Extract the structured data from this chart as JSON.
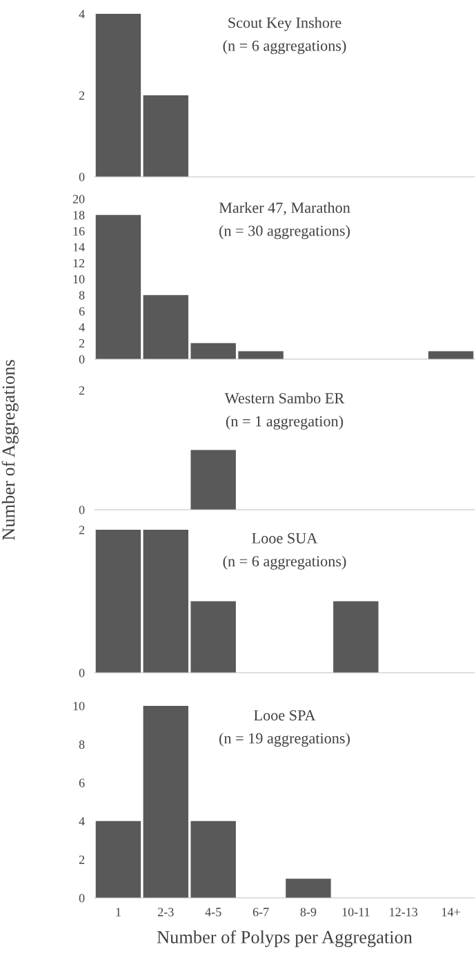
{
  "chart_data": [
    {
      "type": "bar",
      "title": "Scout Key Inshore",
      "subtitle": "(n = 6 aggregations)",
      "categories": [
        "1",
        "2-3",
        "4-5",
        "6-7",
        "8-9",
        "10-11",
        "12-13",
        "14+"
      ],
      "values": [
        4,
        2,
        0,
        0,
        0,
        0,
        0,
        0
      ],
      "color": "#595959",
      "ylim": [
        0,
        4
      ],
      "yticks": [
        0,
        2,
        4
      ],
      "grid": false,
      "tick_labels": "y"
    },
    {
      "type": "bar",
      "title": "Marker 47, Marathon",
      "subtitle": "(n = 30 aggregations)",
      "categories": [
        "1",
        "2-3",
        "4-5",
        "6-7",
        "8-9",
        "10-11",
        "12-13",
        "14+"
      ],
      "values": [
        18,
        8,
        2,
        1,
        0,
        0,
        0,
        1
      ],
      "color": "#595959",
      "ylim": [
        0,
        20
      ],
      "yticks": [
        0,
        2,
        4,
        6,
        8,
        10,
        12,
        14,
        16,
        18,
        20
      ],
      "grid": false,
      "tick_labels": "y"
    },
    {
      "type": "bar",
      "title": "Western Sambo ER",
      "subtitle": "(n = 1 aggregation)",
      "ylabel": "Number of Aggregations",
      "categories": [
        "1",
        "2-3",
        "4-5",
        "6-7",
        "8-9",
        "10-11",
        "12-13",
        "14+"
      ],
      "values": [
        0,
        0,
        1,
        0,
        0,
        0,
        0,
        0
      ],
      "color": "#595959",
      "ylim": [
        0,
        2
      ],
      "yticks": [
        0,
        2
      ],
      "grid": false,
      "tick_labels": "y"
    },
    {
      "type": "bar",
      "title": "Looe SUA",
      "subtitle": "(n = 6 aggregations)",
      "categories": [
        "1",
        "2-3",
        "4-5",
        "6-7",
        "8-9",
        "10-11",
        "12-13",
        "14+"
      ],
      "values": [
        2,
        2,
        1,
        0,
        0,
        1,
        0,
        0
      ],
      "color": "#595959",
      "ylim": [
        0,
        2
      ],
      "yticks": [
        0,
        2
      ],
      "grid": false,
      "tick_labels": "y"
    },
    {
      "type": "bar",
      "title": "Looe SPA",
      "subtitle": "(n = 19 aggregations)",
      "xlabel": "Number of Polyps per Aggregation",
      "categories": [
        "1",
        "2-3",
        "4-5",
        "6-7",
        "8-9",
        "10-11",
        "12-13",
        "14+"
      ],
      "values": [
        4,
        10,
        4,
        0,
        1,
        0,
        0,
        0
      ],
      "color": "#595959",
      "ylim": [
        0,
        10
      ],
      "yticks": [
        0,
        2,
        4,
        6,
        8,
        10
      ],
      "grid": false
    }
  ]
}
